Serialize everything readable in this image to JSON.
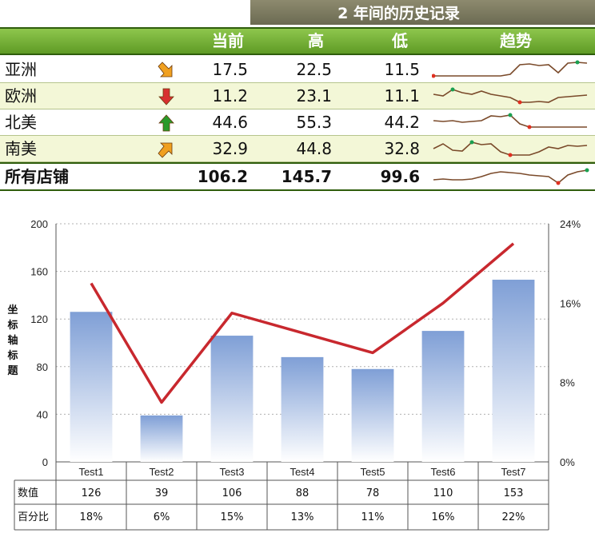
{
  "summary": {
    "banner": "2 年间的历史记录",
    "columns": [
      "当前",
      "高",
      "低",
      "趋势"
    ],
    "rows": [
      {
        "region": "亚洲",
        "current": "17.5",
        "high": "22.5",
        "low": "11.5",
        "trend": "down-right",
        "trend_color": "#f0a020",
        "spark": [
          0.1,
          0.1,
          0.1,
          0.1,
          0.1,
          0.1,
          0.1,
          0.1,
          0.2,
          0.8,
          0.85,
          0.75,
          0.8,
          0.3,
          0.9,
          0.95,
          0.9
        ]
      },
      {
        "region": "欧洲",
        "current": "11.2",
        "high": "23.1",
        "low": "11.1",
        "trend": "down",
        "trend_color": "#d83030",
        "spark": [
          0.6,
          0.5,
          0.9,
          0.7,
          0.6,
          0.8,
          0.6,
          0.5,
          0.4,
          0.1,
          0.1,
          0.15,
          0.1,
          0.4,
          0.45,
          0.5,
          0.55
        ]
      },
      {
        "region": "北美",
        "current": "44.6",
        "high": "55.3",
        "low": "44.2",
        "trend": "up",
        "trend_color": "#2a9a2a",
        "spark": [
          0.6,
          0.55,
          0.6,
          0.5,
          0.55,
          0.6,
          0.9,
          0.85,
          0.95,
          0.4,
          0.2,
          0.2,
          0.2,
          0.2,
          0.2,
          0.2,
          0.2
        ]
      },
      {
        "region": "南美",
        "current": "32.9",
        "high": "44.8",
        "low": "32.8",
        "trend": "up-right",
        "trend_color": "#f0a020",
        "spark": [
          0.5,
          0.8,
          0.4,
          0.35,
          0.9,
          0.75,
          0.8,
          0.3,
          0.1,
          0.1,
          0.1,
          0.3,
          0.6,
          0.5,
          0.7,
          0.65,
          0.7
        ]
      },
      {
        "region": "所有店铺",
        "current": "106.2",
        "high": "145.7",
        "low": "99.6",
        "trend": "none",
        "trend_color": "",
        "spark": [
          0.3,
          0.35,
          0.3,
          0.3,
          0.35,
          0.5,
          0.7,
          0.8,
          0.75,
          0.7,
          0.6,
          0.55,
          0.5,
          0.1,
          0.6,
          0.8,
          0.9
        ]
      }
    ],
    "spark_color": "#7a4a2a",
    "spark_high_color": "#1aa050",
    "spark_low_color": "#e03020"
  },
  "chart_data": {
    "type": "bar",
    "categories": [
      "Test1",
      "Test2",
      "Test3",
      "Test4",
      "Test5",
      "Test6",
      "Test7"
    ],
    "series": [
      {
        "name": "数值",
        "type": "bar",
        "axis": "left",
        "values": [
          126,
          39,
          106,
          88,
          78,
          110,
          153
        ],
        "color": "#7f9fd6"
      },
      {
        "name": "百分比",
        "type": "line",
        "axis": "right",
        "values": [
          18,
          6,
          15,
          13,
          11,
          16,
          22
        ],
        "color": "#c8282e"
      }
    ],
    "ylabel": "坐标轴标题",
    "ylim": [
      0,
      200
    ],
    "yticks": [
      "0",
      "40",
      "80",
      "120",
      "160",
      "200"
    ],
    "y2lim": [
      0,
      24
    ],
    "y2ticks": [
      "0%",
      "8%",
      "16%",
      "24%"
    ],
    "grid": true,
    "table": {
      "row_labels": [
        "数值",
        "百分比"
      ],
      "rows": [
        [
          "126",
          "39",
          "106",
          "88",
          "78",
          "110",
          "153"
        ],
        [
          "18%",
          "6%",
          "15%",
          "13%",
          "11%",
          "16%",
          "22%"
        ]
      ]
    }
  }
}
